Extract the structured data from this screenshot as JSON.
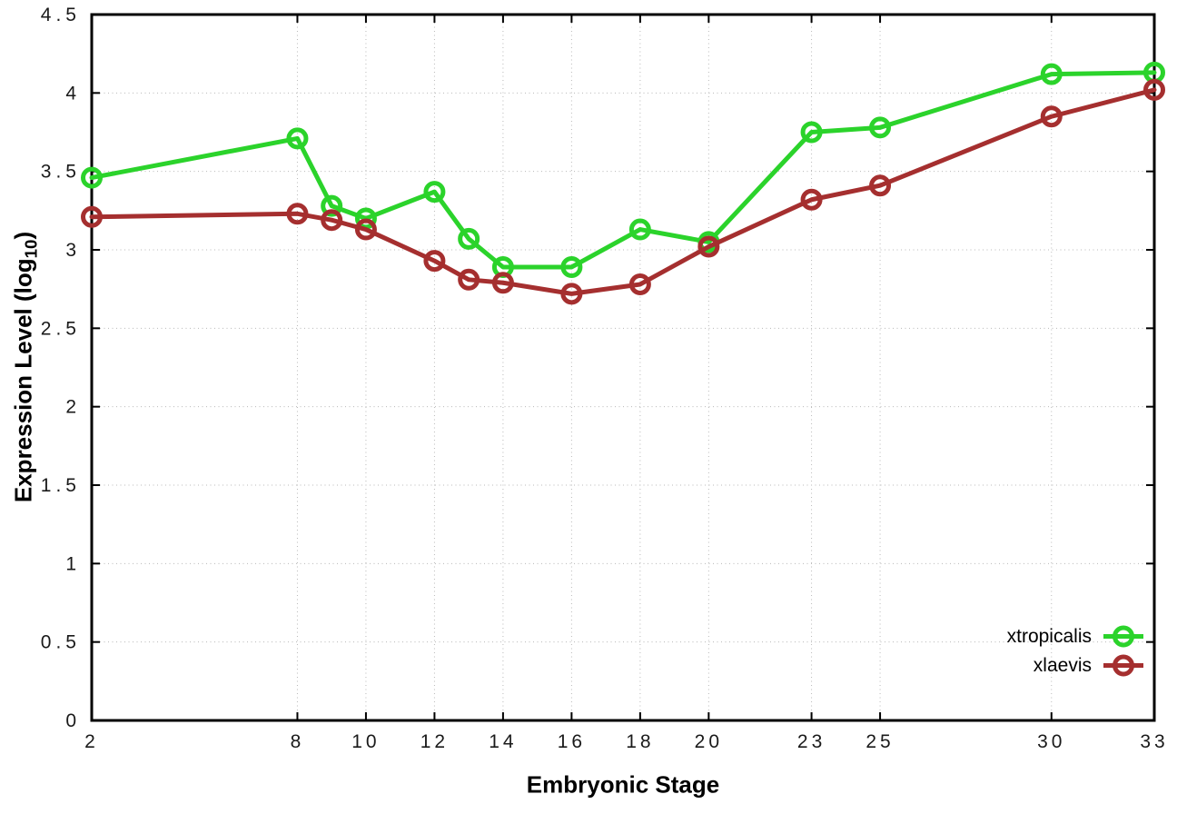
{
  "chart_data": {
    "type": "line",
    "title": "",
    "xlabel": "Embryonic Stage",
    "ylabel": "Expression Level (log10)",
    "ylabel_parts": {
      "pre": "Expression Level (log",
      "sub": "10",
      "post": ")"
    },
    "x": [
      2,
      8,
      9,
      10,
      12,
      13,
      14,
      16,
      18,
      20,
      23,
      25,
      30,
      33
    ],
    "series": [
      {
        "name": "xtropicalis",
        "color": "#2bd32b",
        "marker": "open-circle",
        "values": [
          3.46,
          3.71,
          3.28,
          3.2,
          3.37,
          3.07,
          2.89,
          2.89,
          3.13,
          3.05,
          3.75,
          3.78,
          4.12,
          4.13
        ]
      },
      {
        "name": "xlaevis",
        "color": "#a52f2f",
        "marker": "open-circle",
        "values": [
          3.21,
          3.23,
          3.19,
          3.13,
          2.93,
          2.81,
          2.79,
          2.72,
          2.78,
          3.02,
          3.32,
          3.41,
          3.85,
          4.02
        ]
      }
    ],
    "xlim": [
      2,
      33
    ],
    "ylim": [
      0,
      4.5
    ],
    "xticks": {
      "values": [
        2,
        8,
        10,
        12,
        14,
        16,
        18,
        20,
        23,
        25,
        30,
        33
      ],
      "labels": [
        "2",
        "8",
        "10",
        "12",
        "14",
        "16",
        "18",
        "20",
        "23",
        "25",
        "30",
        "33"
      ]
    },
    "yticks": {
      "values": [
        0,
        0.5,
        1,
        1.5,
        2,
        2.5,
        3,
        3.5,
        4,
        4.5
      ],
      "labels": [
        "0",
        "0.5",
        "1",
        "1.5",
        "2",
        "2.5",
        "3",
        "3.5",
        "4",
        "4.5"
      ]
    },
    "grid": "dotted",
    "legend_position": "bottom-right",
    "colors": {
      "background": "#ffffff",
      "grid": "#b8b8b8",
      "axis": "#000000",
      "tick_text": "#1a1a1a"
    }
  }
}
